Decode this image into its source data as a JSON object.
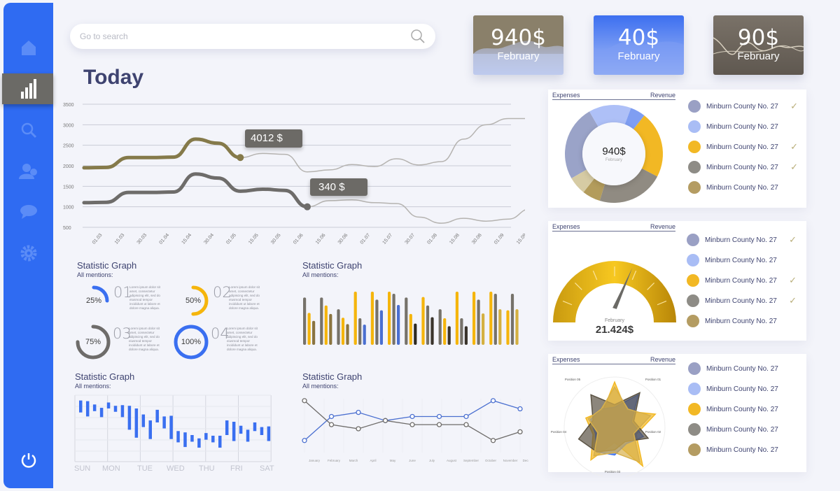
{
  "sidebar": {
    "items": [
      {
        "icon": "home-icon",
        "active": false
      },
      {
        "icon": "bar-chart-icon",
        "active": true
      },
      {
        "icon": "search-icon",
        "active": false
      },
      {
        "icon": "users-icon",
        "active": false
      },
      {
        "icon": "chat-icon",
        "active": false
      },
      {
        "icon": "gear-icon",
        "active": false
      }
    ],
    "power_icon": "power-icon"
  },
  "search": {
    "placeholder": "Go to search",
    "icon": "search-icon"
  },
  "page_title": "Today",
  "kpis": [
    {
      "value": "940$",
      "label": "February",
      "colors": [
        "#8e846e",
        "#b9c6ee"
      ]
    },
    {
      "value": "40$",
      "label": "February",
      "colors": [
        "#3c6ff0",
        "#a8bdf6"
      ]
    },
    {
      "value": "90$",
      "label": "February",
      "colors": [
        "#7a7268",
        "#5f5850"
      ]
    }
  ],
  "main_chart": {
    "type": "line",
    "y_ticks": [
      "3500",
      "3000",
      "2500",
      "2000",
      "1500",
      "1000",
      "500"
    ],
    "ylim": [
      500,
      3500
    ],
    "x_labels": [
      "01.03",
      "15.03",
      "30.03",
      "01.04",
      "15.04",
      "30.04",
      "01.05",
      "15.05",
      "30.05",
      "01.06",
      "15.06",
      "30.06",
      "01.07",
      "15.07",
      "30.07",
      "01.08",
      "15.08",
      "30.08",
      "01.09",
      "15.09",
      "30.09"
    ],
    "series": [
      {
        "values": [
          1950,
          1960,
          2200,
          2200,
          2210,
          2650,
          2550,
          2200,
          2300,
          2280,
          1850,
          1900,
          2030,
          1980,
          2170,
          2020,
          2100,
          2650,
          3000,
          3150,
          3150
        ],
        "highlight_until": "15.05",
        "color": "#857a4a",
        "tooltip": "4012 $"
      },
      {
        "values": [
          1100,
          1110,
          1350,
          1350,
          1360,
          1800,
          1700,
          1380,
          1430,
          1400,
          1000,
          1150,
          1170,
          1100,
          1080,
          750,
          600,
          720,
          650,
          700,
          950
        ],
        "highlight_until": "15.06",
        "color": "#6e6c6a",
        "tooltip": "340 $"
      }
    ]
  },
  "rings": {
    "title": "Statistic Graph",
    "subtitle": "All mentions:",
    "items": [
      {
        "num": "01",
        "pct": 25,
        "label": "25%",
        "color": "#3a6ff0",
        "text": "Lorem ipsum dolor sit amet, consectetur adipiscing elit, sed do eiusmod tempor incididunt ut labore et dolore magna aliqua."
      },
      {
        "num": "02",
        "pct": 50,
        "label": "50%",
        "color": "#f5b50c",
        "text": "Lorem ipsum dolor sit amet, consectetur adipiscing elit, sed do eiusmod tempor incididunt ut labore et dolore magna aliqua."
      },
      {
        "num": "03",
        "pct": 75,
        "label": "75%",
        "color": "#6e6c6a",
        "text": "Lorem ipsum dolor sit amet, consectetur adipiscing elit, sed do eiusmod tempor incididunt ut labore et dolore magna aliqua."
      },
      {
        "num": "04",
        "pct": 100,
        "label": "100%",
        "color": "#3a6ff0",
        "text": "Lorem ipsum dolor sit amet, consectetur adipiscing elit, sed do eiusmod tempor incididunt ut labore et dolore magna aliqua."
      }
    ]
  },
  "chart_data": [
    {
      "type": "bar",
      "title": "Statistic Graph",
      "subtitle": "All mentions:",
      "groups": [
        [
          {
            "v": 89,
            "c": "#76726a"
          },
          {
            "v": 60,
            "c": "#f5b50c"
          },
          {
            "v": 45,
            "c": "#8a7440"
          }
        ],
        [
          {
            "v": 89,
            "c": "#76726a"
          },
          {
            "v": 74,
            "c": "#f5b50c"
          },
          {
            "v": 58,
            "c": "#8a7440"
          }
        ],
        [
          {
            "v": 67,
            "c": "#76726a"
          },
          {
            "v": 51,
            "c": "#f5b50c"
          },
          {
            "v": 39,
            "c": "#8a7440"
          }
        ],
        [
          {
            "v": 100,
            "c": "#f5b50c"
          },
          {
            "v": 50,
            "c": "#76726a"
          },
          {
            "v": 38,
            "c": "#4a6fd0"
          }
        ],
        [
          {
            "v": 100,
            "c": "#f5b50c"
          },
          {
            "v": 85,
            "c": "#76726a"
          },
          {
            "v": 65,
            "c": "#4a6fd0"
          }
        ],
        [
          {
            "v": 100,
            "c": "#f5b50c"
          },
          {
            "v": 96,
            "c": "#76726a"
          },
          {
            "v": 75,
            "c": "#4a6fd0"
          }
        ],
        [
          {
            "v": 89,
            "c": "#76726a"
          },
          {
            "v": 58,
            "c": "#f5b50c"
          },
          {
            "v": 40,
            "c": "#2e2a22"
          }
        ],
        [
          {
            "v": 90,
            "c": "#f5b50c"
          },
          {
            "v": 74,
            "c": "#76726a"
          },
          {
            "v": 52,
            "c": "#3a342c"
          }
        ],
        [
          {
            "v": 67,
            "c": "#76726a"
          },
          {
            "v": 50,
            "c": "#f5b50c"
          },
          {
            "v": 35,
            "c": "#3a342c"
          }
        ],
        [
          {
            "v": 100,
            "c": "#f5b50c"
          },
          {
            "v": 50,
            "c": "#76726a"
          },
          {
            "v": 35,
            "c": "#3a342c"
          }
        ],
        [
          {
            "v": 100,
            "c": "#f5b50c"
          },
          {
            "v": 85,
            "c": "#76726a"
          },
          {
            "v": 59,
            "c": "#d4b040"
          }
        ],
        [
          {
            "v": 100,
            "c": "#f5b50c"
          },
          {
            "v": 96,
            "c": "#76726a"
          },
          {
            "v": 67,
            "c": "#d4b040"
          }
        ],
        [
          {
            "v": 65,
            "c": "#f5b50c"
          },
          {
            "v": 96,
            "c": "#76726a"
          },
          {
            "v": 67,
            "c": "#d4b040"
          }
        ]
      ]
    },
    {
      "type": "candlestick",
      "title": "Statistic Graph",
      "subtitle": "All mentions:",
      "x_labels": [
        "SUN",
        "MON",
        "TUE",
        "WED",
        "THU",
        "FRI",
        "SAT"
      ],
      "color": "#3a6ff0",
      "bars": [
        [
          92,
          74
        ],
        [
          91,
          68
        ],
        [
          86,
          76
        ],
        [
          81,
          67
        ],
        [
          89,
          80
        ],
        [
          84,
          75
        ],
        [
          85,
          67
        ],
        [
          84,
          48
        ],
        [
          80,
          36
        ],
        [
          71,
          52
        ],
        [
          62,
          34
        ],
        [
          78,
          59
        ],
        [
          68,
          50
        ],
        [
          69,
          34
        ],
        [
          46,
          29
        ],
        [
          44,
          22
        ],
        [
          40,
          30
        ],
        [
          35,
          21
        ],
        [
          43,
          33
        ],
        [
          39,
          29
        ],
        [
          39,
          21
        ],
        [
          62,
          40
        ],
        [
          60,
          31
        ],
        [
          54,
          42
        ],
        [
          48,
          30
        ],
        [
          59,
          46
        ],
        [
          52,
          40
        ],
        [
          53,
          31
        ]
      ]
    },
    {
      "type": "line",
      "title": "Statistic Graph",
      "subtitle": "All mentions:",
      "x_labels": [
        "January",
        "February",
        "March",
        "April",
        "May",
        "June",
        "July",
        "August",
        "September",
        "October",
        "November",
        "December"
      ],
      "series": [
        {
          "color": "#4a6fd0",
          "values": [
            14,
            61,
            69,
            53,
            61,
            61,
            61,
            92,
            76
          ]
        },
        {
          "color": "#6e6c6a",
          "values": [
            92,
            45,
            37,
            53,
            45,
            45,
            45,
            14,
            31
          ]
        }
      ]
    },
    {
      "type": "pie",
      "center_value": "940$",
      "center_label": "February",
      "values": [
        25,
        14,
        5,
        22,
        22,
        6,
        6
      ],
      "colors": [
        "#9aa3c8",
        "#aec0f7",
        "#7f9ef2",
        "#f2b824",
        "#908b82",
        "#b39c5c",
        "#d6cba4"
      ]
    },
    {
      "type": "gauge",
      "value_label": "21.424$",
      "label": "February",
      "fraction": 0.6
    },
    {
      "type": "radar",
      "axes": [
        "Position 01",
        "Position 02",
        "Position 03",
        "Position 04",
        "Position 05"
      ],
      "series": [
        {
          "color": "#f2b824",
          "values": [
            90,
            40,
            85,
            45,
            95,
            30,
            80,
            45,
            60,
            40
          ]
        },
        {
          "color": "#3a6ff0",
          "values": [
            40,
            80,
            35,
            60,
            40,
            55,
            60,
            40,
            50,
            45
          ]
        },
        {
          "color": "#5b5344",
          "values": [
            45,
            85,
            40,
            70,
            35,
            45,
            60,
            75,
            45,
            80
          ]
        },
        {
          "color": "#d8b04a",
          "values": [
            80,
            45,
            75,
            40,
            85,
            50,
            70,
            35,
            55,
            45
          ]
        }
      ]
    }
  ],
  "panels": [
    {
      "left": "Expenses",
      "right": "Revenue",
      "legend": [
        {
          "label": "Minburn County No. 27",
          "color": "#9aa0c4",
          "check": true
        },
        {
          "label": "Minburn County No. 27",
          "color": "#a9bdf5",
          "check": false
        },
        {
          "label": "Minburn County No. 27",
          "color": "#f2b824",
          "check": true
        },
        {
          "label": "Minburn County No. 27",
          "color": "#8e8c86",
          "check": true
        },
        {
          "label": "Minburn County No. 27",
          "color": "#b49c62",
          "check": false
        }
      ]
    },
    {
      "left": "Expenses",
      "right": "Revenue",
      "legend": [
        {
          "label": "Minburn County No. 27",
          "color": "#9aa0c4",
          "check": true
        },
        {
          "label": "Minburn County No. 27",
          "color": "#a9bdf5",
          "check": false
        },
        {
          "label": "Minburn County No. 27",
          "color": "#f2b824",
          "check": true
        },
        {
          "label": "Minburn County No. 27",
          "color": "#8e8c86",
          "check": true
        },
        {
          "label": "Minburn County No. 27",
          "color": "#b49c62",
          "check": false
        }
      ]
    },
    {
      "left": "Expenses",
      "right": "Revenue",
      "legend": [
        {
          "label": "Minburn County No. 27",
          "color": "#9aa0c4",
          "check": false
        },
        {
          "label": "Minburn County No. 27",
          "color": "#a9bdf5",
          "check": false
        },
        {
          "label": "Minburn County No. 27",
          "color": "#f2b824",
          "check": false
        },
        {
          "label": "Minburn County No. 27",
          "color": "#8e8c86",
          "check": false
        },
        {
          "label": "Minburn County No. 27",
          "color": "#b49c62",
          "check": false
        }
      ]
    }
  ],
  "check_glyph": "✓"
}
